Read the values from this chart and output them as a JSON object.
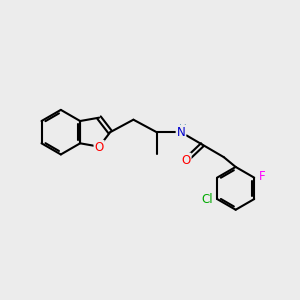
{
  "bg_color": "#ececec",
  "bond_color": "#000000",
  "bond_width": 1.5,
  "atom_colors": {
    "O": "#ff0000",
    "N": "#0000cd",
    "Cl": "#00aa00",
    "F": "#ff00ff",
    "H": "#4488aa"
  },
  "font_size": 8.5,
  "fig_size": [
    3.0,
    3.0
  ],
  "dpi": 100
}
